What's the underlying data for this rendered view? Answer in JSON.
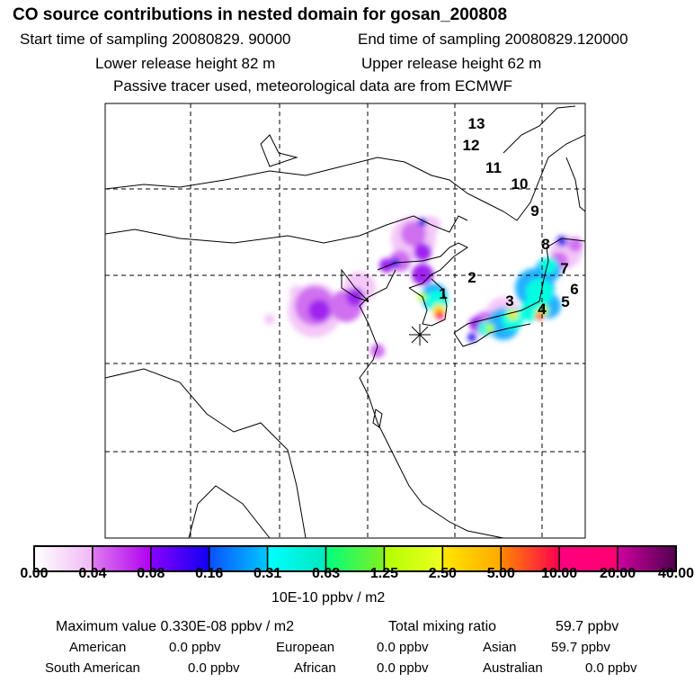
{
  "header": {
    "title": "CO  source contributions in nested domain for gosan_200808",
    "start_label": "Start time of sampling 20080829. 90000",
    "end_label": "End time of sampling 20080829.120000",
    "lower_label": "Lower release height   82 m",
    "upper_label": "Upper release height   62 m",
    "tracer_note": "Passive tracer used, meteorological data are from ECMWF"
  },
  "chart_data": {
    "type": "heatmap",
    "title": "CO  source contributions in nested domain for gosan_200808",
    "region_labels": [
      "1",
      "2",
      "3",
      "4",
      "5",
      "6",
      "7",
      "8",
      "9",
      "10",
      "11",
      "12",
      "13"
    ],
    "receptor_marker": "asterisk",
    "colorbar": {
      "ticks": [
        "0.00",
        "0.04",
        "0.08",
        "0.16",
        "0.31",
        "0.63",
        "1.25",
        "2.50",
        "5.00",
        "10.00",
        "20.00",
        "40.00"
      ],
      "segments": [
        [
          "#ffffff",
          "#f0b8f5"
        ],
        [
          "#e07cf0",
          "#b000f0"
        ],
        [
          "#8a00ff",
          "#1000f0"
        ],
        [
          "#0a50ff",
          "#00c8ff"
        ],
        [
          "#00ffff",
          "#00e8c0"
        ],
        [
          "#00ff80",
          "#80f020"
        ],
        [
          "#b0ff00",
          "#f0ff20"
        ],
        [
          "#ffe800",
          "#ffa800"
        ],
        [
          "#ff8800",
          "#ff0050"
        ],
        [
          "#ff0080",
          "#ff0070"
        ],
        [
          "#d000a0",
          "#500050"
        ]
      ],
      "unit_label": "10E-10 ppbv / m2"
    },
    "grid": true
  },
  "summary": {
    "max_label": "Maximum value  0.330E-08 ppbv / m2",
    "total_label": "Total mixing ratio",
    "total_value": "59.7 ppbv",
    "regions": [
      {
        "name": "American",
        "value": "0.0 ppbv"
      },
      {
        "name": "European",
        "value": "0.0 ppbv"
      },
      {
        "name": "Asian",
        "value": "59.7 ppbv"
      },
      {
        "name": "South American",
        "value": "0.0 ppbv"
      },
      {
        "name": "African",
        "value": "0.0 ppbv"
      },
      {
        "name": "Australian",
        "value": "0.0 ppbv"
      }
    ]
  }
}
